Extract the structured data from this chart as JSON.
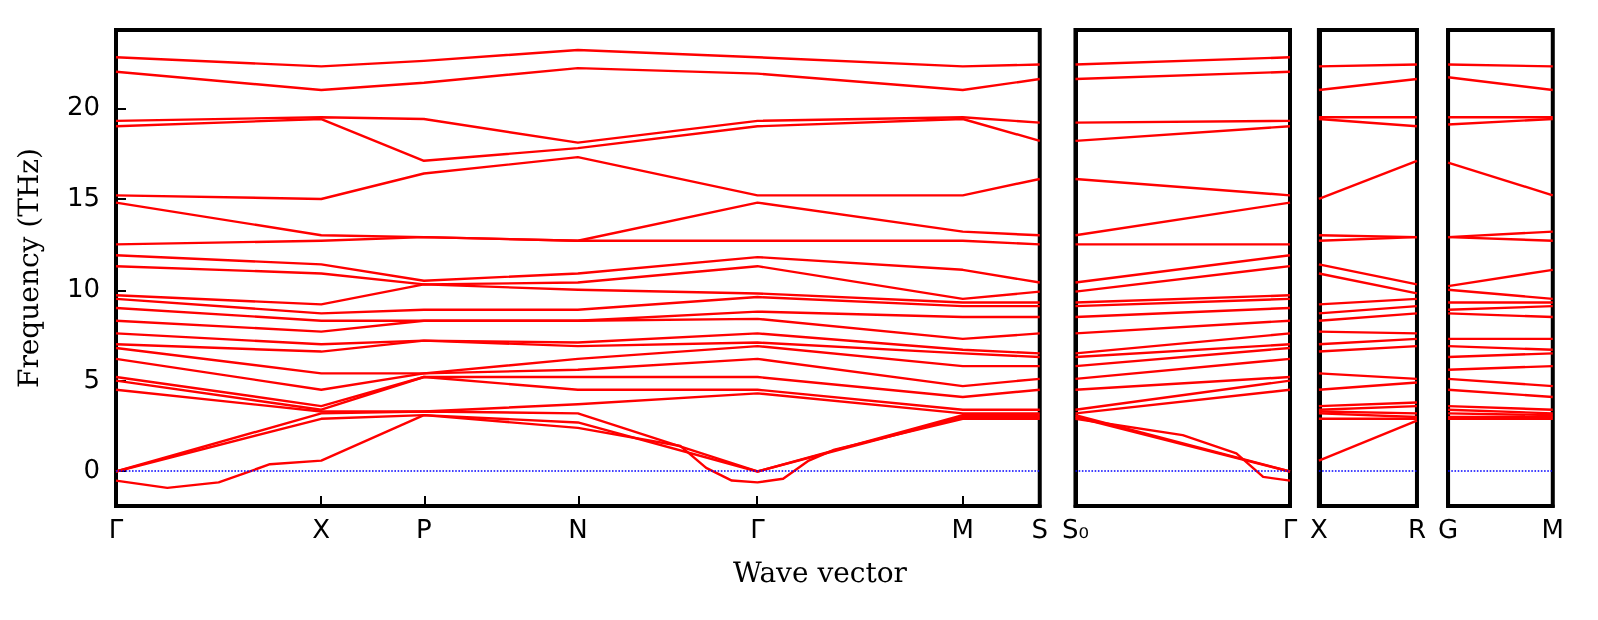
{
  "chart_data": [
    {
      "type": "line",
      "xlabel": "Wave vector",
      "ylabel": "Frequency (THz)",
      "marker": "none",
      "categories": [
        "Γ",
        null,
        null,
        null,
        null,
        null,
        null,
        null,
        "X",
        null,
        null,
        null,
        "P",
        null,
        null,
        null,
        null,
        null,
        "N",
        null,
        null,
        null,
        null,
        null,
        null,
        "Γ",
        null,
        null,
        null,
        null,
        null,
        null,
        null,
        "M",
        null,
        null,
        "S"
      ],
      "ylim": [
        -1.9,
        24.3
      ],
      "yticks": [
        0,
        5,
        10,
        15,
        20
      ],
      "ref_lines": [
        {
          "axis": "y",
          "value": 0,
          "color": "#0000ff",
          "line_style": "dotted"
        }
      ],
      "series": [
        {
          "color": "#ff0000",
          "values": [
            22.8,
            null,
            null,
            null,
            null,
            null,
            null,
            null,
            22.3,
            null,
            null,
            null,
            22.6,
            null,
            null,
            null,
            null,
            null,
            23.2,
            null,
            null,
            null,
            null,
            null,
            null,
            22.8,
            null,
            null,
            null,
            null,
            null,
            null,
            null,
            22.3,
            null,
            null,
            22.4
          ]
        },
        {
          "color": "#ff0000",
          "values": [
            22.0,
            null,
            null,
            null,
            null,
            null,
            null,
            null,
            21.0,
            null,
            null,
            null,
            21.4,
            null,
            null,
            null,
            null,
            null,
            22.2,
            null,
            null,
            null,
            null,
            null,
            null,
            21.9,
            null,
            null,
            null,
            null,
            null,
            null,
            null,
            21.0,
            null,
            null,
            21.6
          ]
        },
        {
          "color": "#ff0000",
          "values": [
            19.3,
            null,
            null,
            null,
            null,
            null,
            null,
            null,
            19.5,
            null,
            null,
            null,
            19.4,
            null,
            null,
            null,
            null,
            null,
            18.1,
            null,
            null,
            null,
            null,
            null,
            null,
            19.3,
            null,
            null,
            null,
            null,
            null,
            null,
            null,
            19.5,
            null,
            null,
            19.2
          ]
        },
        {
          "color": "#ff0000",
          "values": [
            19.0,
            null,
            null,
            null,
            null,
            null,
            null,
            null,
            19.4,
            null,
            null,
            null,
            17.1,
            null,
            null,
            null,
            null,
            null,
            17.8,
            null,
            null,
            null,
            null,
            null,
            null,
            19.0,
            null,
            null,
            null,
            null,
            null,
            null,
            null,
            19.4,
            null,
            null,
            18.2
          ]
        },
        {
          "color": "#ff0000",
          "values": [
            15.2,
            null,
            null,
            null,
            null,
            null,
            null,
            null,
            15.0,
            null,
            null,
            null,
            16.4,
            null,
            null,
            null,
            null,
            null,
            17.3,
            null,
            null,
            null,
            null,
            null,
            null,
            15.2,
            null,
            null,
            null,
            null,
            null,
            null,
            null,
            15.2,
            null,
            null,
            16.1
          ]
        },
        {
          "color": "#ff0000",
          "values": [
            14.8,
            null,
            null,
            null,
            null,
            null,
            null,
            null,
            13.0,
            null,
            null,
            null,
            12.9,
            null,
            null,
            null,
            null,
            null,
            12.7,
            null,
            null,
            null,
            null,
            null,
            null,
            14.8,
            null,
            null,
            null,
            null,
            null,
            null,
            null,
            13.2,
            null,
            null,
            13.0
          ]
        },
        {
          "color": "#ff0000",
          "values": [
            12.5,
            null,
            null,
            null,
            null,
            null,
            null,
            null,
            12.7,
            null,
            null,
            null,
            12.9,
            null,
            null,
            null,
            null,
            null,
            12.7,
            null,
            null,
            null,
            null,
            null,
            null,
            12.7,
            null,
            null,
            null,
            null,
            null,
            null,
            null,
            12.7,
            null,
            null,
            12.5
          ]
        },
        {
          "color": "#ff0000",
          "values": [
            11.9,
            null,
            null,
            null,
            null,
            null,
            null,
            null,
            11.4,
            null,
            null,
            null,
            10.5,
            null,
            null,
            null,
            null,
            null,
            10.9,
            null,
            null,
            null,
            null,
            null,
            null,
            11.8,
            null,
            null,
            null,
            null,
            null,
            null,
            null,
            11.1,
            null,
            null,
            10.4
          ]
        },
        {
          "color": "#ff0000",
          "values": [
            11.3,
            null,
            null,
            null,
            null,
            null,
            null,
            null,
            10.9,
            null,
            null,
            null,
            10.3,
            null,
            null,
            null,
            null,
            null,
            10.4,
            null,
            null,
            null,
            null,
            null,
            null,
            11.3,
            null,
            null,
            null,
            null,
            null,
            null,
            null,
            9.5,
            null,
            null,
            9.9
          ]
        },
        {
          "color": "#ff0000",
          "values": [
            9.7,
            null,
            null,
            null,
            null,
            null,
            null,
            null,
            9.2,
            null,
            null,
            null,
            10.3,
            null,
            null,
            null,
            null,
            null,
            10.0,
            null,
            null,
            null,
            null,
            null,
            null,
            9.8,
            null,
            null,
            null,
            null,
            null,
            null,
            null,
            9.3,
            null,
            null,
            9.3
          ]
        },
        {
          "color": "#ff0000",
          "values": [
            9.5,
            null,
            null,
            null,
            null,
            null,
            null,
            null,
            8.7,
            null,
            null,
            null,
            8.9,
            null,
            null,
            null,
            null,
            null,
            8.9,
            null,
            null,
            null,
            null,
            null,
            null,
            9.6,
            null,
            null,
            null,
            null,
            null,
            null,
            null,
            9.1,
            null,
            null,
            9.1
          ]
        },
        {
          "color": "#ff0000",
          "values": [
            9.0,
            null,
            null,
            null,
            null,
            null,
            null,
            null,
            8.3,
            null,
            null,
            null,
            8.3,
            null,
            null,
            null,
            null,
            null,
            8.3,
            null,
            null,
            null,
            null,
            null,
            null,
            8.8,
            null,
            null,
            null,
            null,
            null,
            null,
            null,
            8.5,
            null,
            null,
            8.5
          ]
        },
        {
          "color": "#ff0000",
          "values": [
            8.3,
            null,
            null,
            null,
            null,
            null,
            null,
            null,
            7.7,
            null,
            null,
            null,
            8.3,
            null,
            null,
            null,
            null,
            null,
            8.3,
            null,
            null,
            null,
            null,
            null,
            null,
            8.4,
            null,
            null,
            null,
            null,
            null,
            null,
            null,
            7.3,
            null,
            null,
            7.6
          ]
        },
        {
          "color": "#ff0000",
          "values": [
            7.6,
            null,
            null,
            null,
            null,
            null,
            null,
            null,
            7.0,
            null,
            null,
            null,
            7.2,
            null,
            null,
            null,
            null,
            null,
            7.1,
            null,
            null,
            null,
            null,
            null,
            null,
            7.6,
            null,
            null,
            null,
            null,
            null,
            null,
            null,
            6.7,
            null,
            null,
            6.5
          ]
        },
        {
          "color": "#ff0000",
          "values": [
            7.0,
            null,
            null,
            null,
            null,
            null,
            null,
            null,
            6.6,
            null,
            null,
            null,
            7.2,
            null,
            null,
            null,
            null,
            null,
            6.9,
            null,
            null,
            null,
            null,
            null,
            null,
            7.1,
            null,
            null,
            null,
            null,
            null,
            null,
            null,
            6.5,
            null,
            null,
            6.3
          ]
        },
        {
          "color": "#ff0000",
          "values": [
            6.8,
            null,
            null,
            null,
            null,
            null,
            null,
            null,
            5.4,
            null,
            null,
            null,
            5.4,
            null,
            null,
            null,
            null,
            null,
            6.2,
            null,
            null,
            null,
            null,
            null,
            null,
            6.9,
            null,
            null,
            null,
            null,
            null,
            null,
            null,
            5.8,
            null,
            null,
            5.8
          ]
        },
        {
          "color": "#ff0000",
          "values": [
            6.2,
            null,
            null,
            null,
            null,
            null,
            null,
            null,
            4.5,
            null,
            null,
            null,
            5.4,
            null,
            null,
            null,
            null,
            null,
            5.6,
            null,
            null,
            null,
            null,
            null,
            null,
            6.2,
            null,
            null,
            null,
            null,
            null,
            null,
            null,
            4.7,
            null,
            null,
            5.1
          ]
        },
        {
          "color": "#ff0000",
          "values": [
            5.2,
            null,
            null,
            null,
            null,
            null,
            null,
            null,
            3.6,
            null,
            null,
            null,
            5.2,
            null,
            null,
            null,
            null,
            null,
            5.2,
            null,
            null,
            null,
            null,
            null,
            null,
            5.2,
            null,
            null,
            null,
            null,
            null,
            null,
            null,
            4.1,
            null,
            null,
            4.5
          ]
        },
        {
          "color": "#ff0000",
          "values": [
            5.0,
            null,
            null,
            null,
            null,
            null,
            null,
            null,
            3.4,
            null,
            null,
            null,
            5.2,
            null,
            null,
            null,
            null,
            null,
            4.5,
            null,
            null,
            null,
            null,
            null,
            null,
            4.5,
            null,
            null,
            null,
            null,
            null,
            null,
            null,
            3.4,
            null,
            null,
            3.4
          ]
        },
        {
          "color": "#ff0000",
          "values": [
            4.5,
            null,
            null,
            null,
            null,
            null,
            null,
            null,
            3.3,
            null,
            null,
            null,
            3.3,
            null,
            null,
            null,
            null,
            null,
            3.7,
            null,
            null,
            null,
            null,
            null,
            null,
            4.3,
            null,
            null,
            null,
            null,
            null,
            null,
            null,
            3.2,
            null,
            null,
            3.2
          ]
        },
        {
          "color": "#ff0000",
          "values": [
            0,
            null,
            null,
            null,
            null,
            null,
            null,
            null,
            3.2,
            null,
            null,
            null,
            3.3,
            null,
            null,
            null,
            null,
            null,
            3.2,
            null,
            null,
            null,
            null,
            null,
            null,
            0,
            null,
            null,
            null,
            null,
            null,
            null,
            null,
            3.1,
            null,
            null,
            3.1
          ]
        },
        {
          "color": "#ff0000",
          "values": [
            0,
            null,
            null,
            null,
            null,
            null,
            null,
            null,
            2.9,
            null,
            null,
            null,
            3.1,
            null,
            null,
            null,
            null,
            null,
            2.7,
            null,
            null,
            null,
            null,
            null,
            null,
            0,
            null,
            null,
            null,
            null,
            null,
            null,
            null,
            3.0,
            null,
            null,
            3.0
          ]
        },
        {
          "color": "#ff0000",
          "values": [
            -0.5,
            null,
            -0.9,
            null,
            -0.6,
            -0.1,
            0.4,
            null,
            0.6,
            null,
            null,
            null,
            3.1,
            null,
            null,
            null,
            null,
            null,
            2.4,
            null,
            null,
            null,
            1.4,
            0.2,
            -0.5,
            -0.6,
            -0.4,
            0.6,
            1.2,
            null,
            null,
            null,
            null,
            2.9,
            null,
            null,
            2.9
          ]
        }
      ]
    },
    {
      "type": "line",
      "marker": "none",
      "tick_labels": "x",
      "categories": [
        "S₀",
        null,
        null,
        null,
        null,
        null,
        null,
        null,
        "Γ"
      ],
      "ylim": [
        -1.9,
        24.3
      ],
      "ref_lines": [
        {
          "axis": "y",
          "value": 0,
          "color": "#0000ff",
          "line_style": "dotted"
        }
      ],
      "series": [
        {
          "color": "#ff0000",
          "values": [
            22.4,
            null,
            null,
            null,
            null,
            null,
            null,
            null,
            22.8
          ]
        },
        {
          "color": "#ff0000",
          "values": [
            21.6,
            null,
            null,
            null,
            null,
            null,
            null,
            null,
            22.0
          ]
        },
        {
          "color": "#ff0000",
          "values": [
            19.2,
            null,
            null,
            null,
            null,
            null,
            null,
            null,
            19.3
          ]
        },
        {
          "color": "#ff0000",
          "values": [
            18.2,
            null,
            null,
            null,
            null,
            null,
            null,
            null,
            19.0
          ]
        },
        {
          "color": "#ff0000",
          "values": [
            16.1,
            null,
            null,
            null,
            null,
            null,
            null,
            null,
            15.2
          ]
        },
        {
          "color": "#ff0000",
          "values": [
            13.0,
            null,
            null,
            null,
            null,
            null,
            null,
            null,
            14.8
          ]
        },
        {
          "color": "#ff0000",
          "values": [
            12.5,
            null,
            null,
            null,
            null,
            null,
            null,
            null,
            12.5
          ]
        },
        {
          "color": "#ff0000",
          "values": [
            10.4,
            null,
            null,
            null,
            null,
            null,
            null,
            null,
            11.9
          ]
        },
        {
          "color": "#ff0000",
          "values": [
            9.9,
            null,
            null,
            null,
            null,
            null,
            null,
            null,
            11.3
          ]
        },
        {
          "color": "#ff0000",
          "values": [
            9.3,
            null,
            null,
            null,
            null,
            null,
            null,
            null,
            9.7
          ]
        },
        {
          "color": "#ff0000",
          "values": [
            9.1,
            null,
            null,
            null,
            null,
            null,
            null,
            null,
            9.5
          ]
        },
        {
          "color": "#ff0000",
          "values": [
            8.5,
            null,
            null,
            null,
            null,
            null,
            null,
            null,
            9.0
          ]
        },
        {
          "color": "#ff0000",
          "values": [
            7.6,
            null,
            null,
            null,
            null,
            null,
            null,
            null,
            8.3
          ]
        },
        {
          "color": "#ff0000",
          "values": [
            6.5,
            null,
            null,
            null,
            null,
            null,
            null,
            null,
            7.6
          ]
        },
        {
          "color": "#ff0000",
          "values": [
            6.3,
            null,
            null,
            null,
            null,
            null,
            null,
            null,
            7.0
          ]
        },
        {
          "color": "#ff0000",
          "values": [
            5.8,
            null,
            null,
            null,
            null,
            null,
            null,
            null,
            6.8
          ]
        },
        {
          "color": "#ff0000",
          "values": [
            5.1,
            null,
            null,
            null,
            null,
            null,
            null,
            null,
            6.2
          ]
        },
        {
          "color": "#ff0000",
          "values": [
            4.5,
            null,
            null,
            null,
            null,
            null,
            null,
            null,
            5.2
          ]
        },
        {
          "color": "#ff0000",
          "values": [
            3.4,
            null,
            null,
            null,
            null,
            null,
            null,
            null,
            5.0
          ]
        },
        {
          "color": "#ff0000",
          "values": [
            3.2,
            null,
            null,
            null,
            null,
            null,
            null,
            null,
            4.5
          ]
        },
        {
          "color": "#ff0000",
          "values": [
            3.1,
            null,
            null,
            null,
            null,
            null,
            null,
            null,
            0
          ]
        },
        {
          "color": "#ff0000",
          "values": [
            3.0,
            null,
            null,
            null,
            null,
            null,
            null,
            null,
            0
          ]
        },
        {
          "color": "#ff0000",
          "values": [
            2.9,
            null,
            null,
            null,
            2.0,
            null,
            1.0,
            -0.3,
            -0.5
          ]
        }
      ]
    },
    {
      "type": "line",
      "marker": "none",
      "tick_labels": "x",
      "categories": [
        "X",
        "R"
      ],
      "ylim": [
        -1.9,
        24.3
      ],
      "ref_lines": [
        {
          "axis": "y",
          "value": 0,
          "color": "#0000ff",
          "line_style": "dotted"
        }
      ],
      "series": [
        {
          "color": "#ff0000",
          "values": [
            22.3,
            22.4
          ]
        },
        {
          "color": "#ff0000",
          "values": [
            21.0,
            21.6
          ]
        },
        {
          "color": "#ff0000",
          "values": [
            19.5,
            19.5
          ]
        },
        {
          "color": "#ff0000",
          "values": [
            19.4,
            19.0
          ]
        },
        {
          "color": "#ff0000",
          "values": [
            15.0,
            17.1
          ]
        },
        {
          "color": "#ff0000",
          "values": [
            13.0,
            12.9
          ]
        },
        {
          "color": "#ff0000",
          "values": [
            12.7,
            12.9
          ]
        },
        {
          "color": "#ff0000",
          "values": [
            11.4,
            10.3
          ]
        },
        {
          "color": "#ff0000",
          "values": [
            10.9,
            9.8
          ]
        },
        {
          "color": "#ff0000",
          "values": [
            9.2,
            9.5
          ]
        },
        {
          "color": "#ff0000",
          "values": [
            8.7,
            9.1
          ]
        },
        {
          "color": "#ff0000",
          "values": [
            8.3,
            8.7
          ]
        },
        {
          "color": "#ff0000",
          "values": [
            7.7,
            7.6
          ]
        },
        {
          "color": "#ff0000",
          "values": [
            7.0,
            7.3
          ]
        },
        {
          "color": "#ff0000",
          "values": [
            6.6,
            6.9
          ]
        },
        {
          "color": "#ff0000",
          "values": [
            5.4,
            5.1
          ]
        },
        {
          "color": "#ff0000",
          "values": [
            4.5,
            4.9
          ]
        },
        {
          "color": "#ff0000",
          "values": [
            3.6,
            3.8
          ]
        },
        {
          "color": "#ff0000",
          "values": [
            3.4,
            3.6
          ]
        },
        {
          "color": "#ff0000",
          "values": [
            3.3,
            3.2
          ]
        },
        {
          "color": "#ff0000",
          "values": [
            3.2,
            3.0
          ]
        },
        {
          "color": "#ff0000",
          "values": [
            2.9,
            2.9
          ]
        },
        {
          "color": "#ff0000",
          "values": [
            0.6,
            2.8
          ]
        }
      ]
    },
    {
      "type": "line",
      "marker": "none",
      "tick_labels": "x",
      "categories": [
        "G",
        "M"
      ],
      "ylim": [
        -1.9,
        24.3
      ],
      "ref_lines": [
        {
          "axis": "y",
          "value": 0,
          "color": "#0000ff",
          "line_style": "dotted"
        }
      ],
      "series": [
        {
          "color": "#ff0000",
          "values": [
            22.4,
            22.3
          ]
        },
        {
          "color": "#ff0000",
          "values": [
            21.7,
            21.0
          ]
        },
        {
          "color": "#ff0000",
          "values": [
            19.5,
            19.5
          ]
        },
        {
          "color": "#ff0000",
          "values": [
            19.1,
            19.4
          ]
        },
        {
          "color": "#ff0000",
          "values": [
            17.0,
            15.2
          ]
        },
        {
          "color": "#ff0000",
          "values": [
            12.9,
            13.2
          ]
        },
        {
          "color": "#ff0000",
          "values": [
            12.9,
            12.7
          ]
        },
        {
          "color": "#ff0000",
          "values": [
            10.2,
            11.1
          ]
        },
        {
          "color": "#ff0000",
          "values": [
            10.0,
            9.5
          ]
        },
        {
          "color": "#ff0000",
          "values": [
            9.3,
            9.3
          ]
        },
        {
          "color": "#ff0000",
          "values": [
            8.9,
            9.1
          ]
        },
        {
          "color": "#ff0000",
          "values": [
            8.7,
            8.5
          ]
        },
        {
          "color": "#ff0000",
          "values": [
            7.3,
            7.3
          ]
        },
        {
          "color": "#ff0000",
          "values": [
            6.9,
            6.7
          ]
        },
        {
          "color": "#ff0000",
          "values": [
            6.3,
            6.5
          ]
        },
        {
          "color": "#ff0000",
          "values": [
            5.6,
            5.8
          ]
        },
        {
          "color": "#ff0000",
          "values": [
            5.1,
            4.7
          ]
        },
        {
          "color": "#ff0000",
          "values": [
            4.5,
            4.1
          ]
        },
        {
          "color": "#ff0000",
          "values": [
            3.6,
            3.4
          ]
        },
        {
          "color": "#ff0000",
          "values": [
            3.4,
            3.2
          ]
        },
        {
          "color": "#ff0000",
          "values": [
            3.2,
            3.1
          ]
        },
        {
          "color": "#ff0000",
          "values": [
            3.0,
            3.0
          ]
        },
        {
          "color": "#ff0000",
          "values": [
            2.9,
            2.9
          ]
        }
      ]
    }
  ]
}
